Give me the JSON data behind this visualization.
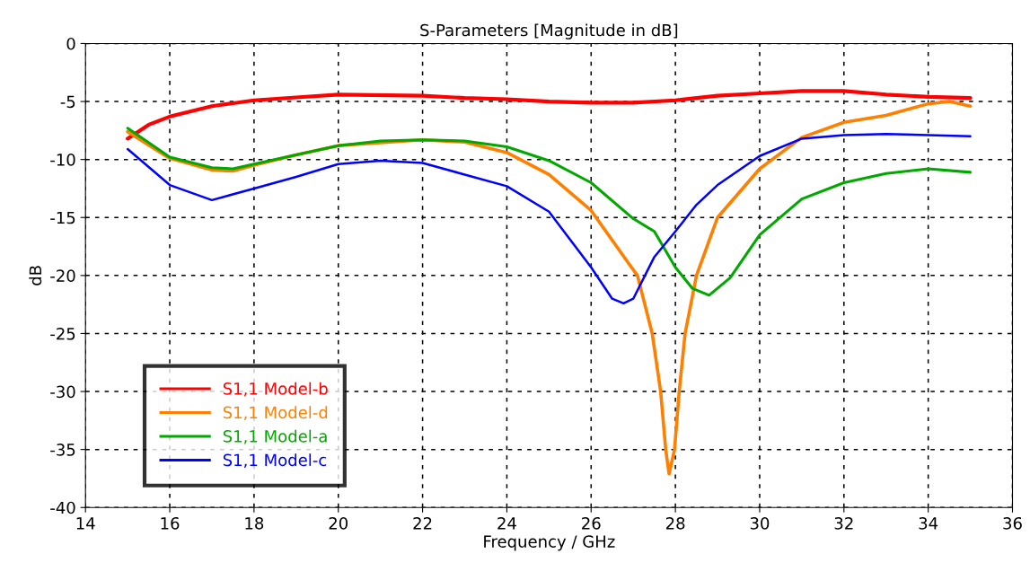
{
  "chart_data": {
    "type": "line",
    "title": "S-Parameters [Magnitude in dB]",
    "xlabel": "Frequency / GHz",
    "ylabel": "dB",
    "xlim": [
      14,
      36
    ],
    "xticks": [
      14,
      16,
      18,
      20,
      22,
      24,
      26,
      28,
      30,
      32,
      34,
      36
    ],
    "ylim": [
      -40,
      0
    ],
    "yticks": [
      -40,
      -35,
      -30,
      -25,
      -20,
      -15,
      -10,
      -5,
      0
    ],
    "grid": true,
    "legend": "bottom left",
    "line_style": "solid",
    "marker": "none",
    "series": [
      {
        "name": "S1,1 Model-b",
        "color": "#ff0000",
        "x": [
          15,
          15.5,
          16,
          17,
          18,
          19,
          20,
          22,
          23,
          24,
          25,
          26,
          27,
          28,
          29,
          30,
          31,
          32,
          33,
          34,
          35
        ],
        "values": [
          -8.2,
          -7.0,
          -6.3,
          -5.4,
          -4.9,
          -4.65,
          -4.4,
          -4.5,
          -4.7,
          -4.8,
          -5.0,
          -5.1,
          -5.1,
          -4.9,
          -4.5,
          -4.3,
          -4.1,
          -4.1,
          -4.4,
          -4.6,
          -4.7
        ]
      },
      {
        "name": "S1,1 Model-d",
        "color": "#ff8000",
        "x": [
          15,
          16,
          17,
          17.5,
          18,
          19,
          20,
          22,
          23,
          24,
          25,
          26,
          26.9,
          27.1,
          27.45,
          27.65,
          27.77,
          27.85,
          27.98,
          28.09,
          28.23,
          28.5,
          29,
          30,
          31,
          32,
          33,
          34,
          34.5,
          35
        ],
        "values": [
          -7.6,
          -9.9,
          -10.9,
          -11.0,
          -10.5,
          -9.6,
          -8.8,
          -8.3,
          -8.5,
          -9.4,
          -11.3,
          -14.4,
          -19.0,
          -20.0,
          -25.0,
          -30.0,
          -35.0,
          -37.1,
          -35.0,
          -30.0,
          -25.0,
          -20.0,
          -15.0,
          -10.8,
          -8.1,
          -6.8,
          -6.2,
          -5.2,
          -5.0,
          -5.4
        ]
      },
      {
        "name": "S1,1 Model-a",
        "color": "#00a800",
        "x": [
          15,
          16,
          17,
          17.5,
          18,
          19,
          20,
          21,
          22,
          23,
          24,
          25,
          26,
          27,
          27.5,
          28,
          28.4,
          28.8,
          29.3,
          30,
          31,
          32,
          33,
          34,
          35
        ],
        "values": [
          -7.3,
          -9.8,
          -10.7,
          -10.8,
          -10.4,
          -9.6,
          -8.8,
          -8.4,
          -8.3,
          -8.4,
          -8.9,
          -10.1,
          -12.0,
          -15.1,
          -16.2,
          -19.3,
          -21.1,
          -21.7,
          -20.2,
          -16.5,
          -13.4,
          -12.0,
          -11.2,
          -10.8,
          -11.1
        ]
      },
      {
        "name": "S1,1 Model-c",
        "color": "#0000ff",
        "x": [
          15,
          16,
          17,
          18,
          19,
          20,
          21,
          22,
          23,
          24,
          25,
          26,
          26.5,
          26.77,
          27,
          27.5,
          28,
          28.5,
          29,
          30,
          31,
          32,
          33,
          34,
          35
        ],
        "values": [
          -9.1,
          -12.2,
          -13.5,
          -12.5,
          -11.5,
          -10.4,
          -10.1,
          -10.3,
          -11.3,
          -12.3,
          -14.5,
          -19.3,
          -22.0,
          -22.4,
          -22.0,
          -18.4,
          -16.2,
          -13.9,
          -12.2,
          -9.7,
          -8.2,
          -7.9,
          -7.8,
          -7.9,
          -8.0
        ]
      }
    ]
  }
}
